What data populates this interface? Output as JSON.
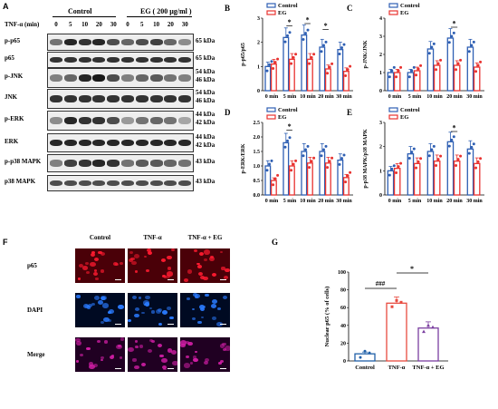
{
  "panels": {
    "A": "A",
    "B": "B",
    "C": "C",
    "D": "D",
    "E": "E",
    "F": "F",
    "G": "G"
  },
  "blot": {
    "tnf_label": "TNF-α (min)",
    "group_control": "Control",
    "group_eg": "EG ( 200 μg/ml )",
    "timepoints": [
      "0",
      "5",
      "10",
      "20",
      "30",
      "0",
      "5",
      "10",
      "20",
      "30"
    ],
    "rows": [
      {
        "label": "p-p65",
        "kda": [
          "65 kDa"
        ]
      },
      {
        "label": "p65",
        "kda": [
          "65 kDa"
        ]
      },
      {
        "label": "p-JNK",
        "kda": [
          "54 kDa",
          "46 kDa"
        ]
      },
      {
        "label": "JNK",
        "kda": [
          "54 kDa",
          "46 kDa"
        ]
      },
      {
        "label": "p-ERK",
        "kda": [
          "44 kDa",
          "42 kDa"
        ]
      },
      {
        "label": "ERK",
        "kda": [
          "44 kDa",
          "42 kDa"
        ]
      },
      {
        "label": "p-p38 MAPK",
        "kda": [
          "43 kDa"
        ]
      },
      {
        "label": "p38 MAPK",
        "kda": [
          "43 kDa"
        ]
      }
    ]
  },
  "legend": {
    "control": "Control",
    "eg": "EG"
  },
  "colors": {
    "control": "#2e5fb3",
    "eg": "#e8322f",
    "g_control": "#1f5fa8",
    "g_tnf": "#e84a3f",
    "g_tnf_eg": "#7b3fa0"
  },
  "chart_data": [
    {
      "id": "B",
      "type": "bar",
      "ylabel": "p-p65/p65",
      "categories": [
        "0 min",
        "5 min",
        "10 min",
        "20 min",
        "30 min"
      ],
      "ylim": [
        0,
        3
      ],
      "yticks": [
        "0",
        "1",
        "2",
        "3"
      ],
      "series": [
        {
          "name": "Control",
          "values": [
            1.0,
            2.2,
            2.3,
            1.8,
            1.7
          ]
        },
        {
          "name": "EG",
          "values": [
            1.1,
            1.3,
            1.3,
            0.9,
            0.8
          ]
        }
      ],
      "significance": [
        "*",
        "*",
        "*"
      ]
    },
    {
      "id": "C",
      "type": "bar",
      "ylabel": "p-JNK/JNK",
      "categories": [
        "0 min",
        "5 min",
        "10 min",
        "20 min",
        "30 min"
      ],
      "ylim": [
        0,
        4
      ],
      "yticks": [
        "0",
        "1",
        "2",
        "3",
        "4"
      ],
      "series": [
        {
          "name": "Control",
          "values": [
            1.0,
            1.0,
            2.3,
            2.9,
            2.4
          ]
        },
        {
          "name": "EG",
          "values": [
            1.0,
            1.1,
            1.4,
            1.4,
            1.3
          ]
        }
      ],
      "significance": [
        "*"
      ]
    },
    {
      "id": "D",
      "type": "bar",
      "ylabel": "p-ERK/ERK",
      "categories": [
        "0 min",
        "5 min",
        "10 min",
        "20 min",
        "30 min"
      ],
      "ylim": [
        0,
        2.5
      ],
      "yticks": [
        "0.0",
        "0.5",
        "1.0",
        "1.5",
        "2.0",
        "2.5"
      ],
      "series": [
        {
          "name": "Control",
          "values": [
            1.0,
            1.8,
            1.5,
            1.5,
            1.2
          ]
        },
        {
          "name": "EG",
          "values": [
            0.5,
            1.0,
            1.1,
            1.1,
            0.6
          ]
        }
      ],
      "significance": [
        "*"
      ]
    },
    {
      "id": "E",
      "type": "bar",
      "ylabel": "p-p38 MAPK/p38 MAPK",
      "categories": [
        "0 min",
        "5 min",
        "10 min",
        "20 min",
        "30 min"
      ],
      "ylim": [
        0,
        3
      ],
      "yticks": [
        "0",
        "1",
        "2",
        "3"
      ],
      "series": [
        {
          "name": "Control",
          "values": [
            1.0,
            1.7,
            1.8,
            2.2,
            1.9
          ]
        },
        {
          "name": "EG",
          "values": [
            1.1,
            1.3,
            1.4,
            1.4,
            1.3
          ]
        }
      ],
      "significance": [
        "*"
      ]
    },
    {
      "id": "G",
      "type": "bar",
      "ylabel": "Nuclear p65 (% of cells)",
      "categories": [
        "Control",
        "TNF-α",
        "TNF-α + EG"
      ],
      "ylim": [
        0,
        100
      ],
      "yticks": [
        "0",
        "20",
        "40",
        "60",
        "80",
        "100"
      ],
      "values": [
        8,
        65,
        37
      ],
      "significance": [
        "###",
        "*"
      ]
    }
  ],
  "micrographs": {
    "columns": [
      "Control",
      "TNF-α",
      "TNF-α + EG"
    ],
    "rows": [
      "p65",
      "DAPI",
      "Merge"
    ]
  }
}
